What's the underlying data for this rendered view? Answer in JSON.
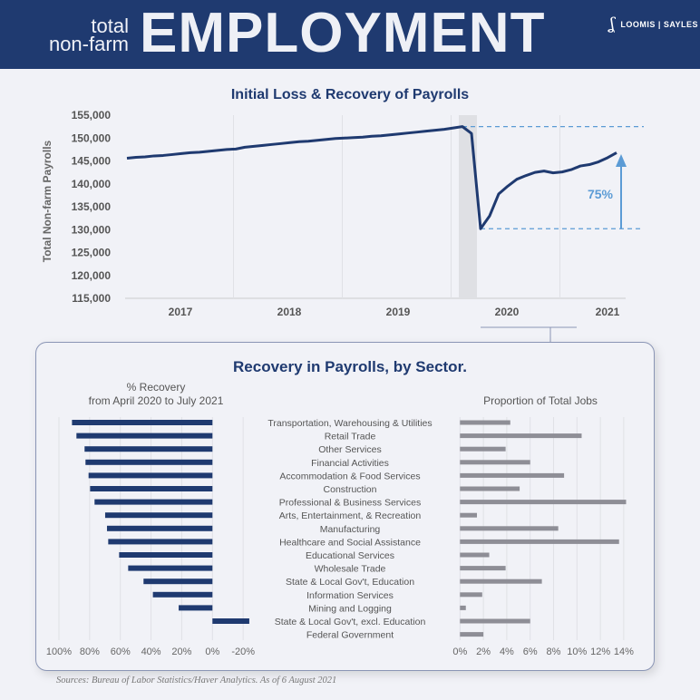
{
  "header": {
    "line1": "total",
    "line2": "non-farm",
    "title": "EMPLOYMENT",
    "logo_text": "LOOMIS | SAYLES"
  },
  "colors": {
    "header_bg": "#1f3a70",
    "line": "#1f3a70",
    "accent": "#5b9bd5",
    "grey_bar": "#8e8e96",
    "shade": "#dfe0e4"
  },
  "chart_data": [
    {
      "type": "line",
      "title": "Initial Loss & Recovery of Payrolls",
      "ylabel": "Total Non-farm Payrolls",
      "ylim": [
        115000,
        155000
      ],
      "yticks": [
        "155,000",
        "150,000",
        "145,000",
        "140,000",
        "135,000",
        "130,000",
        "125,000",
        "120,000",
        "115,000"
      ],
      "xticks": [
        "2017",
        "2018",
        "2019",
        "2020",
        "2021"
      ],
      "x_start": "2017-01",
      "x_end": "2021-07",
      "frequency": "monthly",
      "values": [
        145600,
        145800,
        145900,
        146100,
        146200,
        146400,
        146600,
        146800,
        146900,
        147100,
        147300,
        147500,
        147600,
        148000,
        148200,
        148400,
        148600,
        148800,
        149000,
        149200,
        149300,
        149500,
        149700,
        149900,
        150000,
        150100,
        150200,
        150400,
        150500,
        150700,
        150900,
        151100,
        151300,
        151500,
        151700,
        151900,
        152200,
        152500,
        151000,
        130200,
        133000,
        137800,
        139500,
        141000,
        141800,
        142500,
        142800,
        142400,
        142600,
        143100,
        143900,
        144200,
        144800,
        145700,
        146800
      ],
      "shaded_period": [
        "2020-02",
        "2020-04"
      ],
      "reference_lines": [
        152500,
        130200
      ],
      "annotation": "75%",
      "grid": "vertical year lines"
    },
    {
      "type": "bar",
      "orientation": "horizontal",
      "title": "Recovery in Payrolls, by Sector.",
      "subtitle_line1": "% Recovery",
      "subtitle_line2": "from April 2020 to July 2021",
      "xlim": [
        100,
        -20
      ],
      "xticks": [
        "100%",
        "80%",
        "60%",
        "40%",
        "20%",
        "0%",
        "-20%"
      ],
      "categories": [
        "Transportation, Warehousing & Utilities",
        "Retail Trade",
        "Other Services",
        "Financial Activities",
        "Accommodation & Food Services",
        "Construction",
        "Professional & Business Services",
        "Arts, Entertainment, & Recreation",
        "Manufacturing",
        "Healthcare and Social Assistance",
        "Educational Services",
        "Wholesale Trade",
        "State & Local Gov't, Education",
        "Information Services",
        "Mining and Logging",
        "State & Local Gov't, excl. Education",
        "Federal Government"
      ],
      "values": [
        91.5,
        88.6,
        83.3,
        82.7,
        80.7,
        79.7,
        76.8,
        69.9,
        68.7,
        67.9,
        60.8,
        54.9,
        44.9,
        38.8,
        22,
        -24,
        0
      ]
    },
    {
      "type": "bar",
      "orientation": "horizontal",
      "title": "Proportion of Total Jobs",
      "xlim": [
        0,
        14
      ],
      "xticks": [
        "0%",
        "2%",
        "4%",
        "6%",
        "8%",
        "10%",
        "12%",
        "14%"
      ],
      "values": [
        4.3,
        10.4,
        3.9,
        6.0,
        8.9,
        5.1,
        14.2,
        1.45,
        8.4,
        13.6,
        2.5,
        3.9,
        7.0,
        1.9,
        0.5,
        6.0,
        2.0
      ]
    }
  ],
  "source": "Sources: Bureau of Labor Statistics/Haver Analytics. As of 6 August 2021"
}
